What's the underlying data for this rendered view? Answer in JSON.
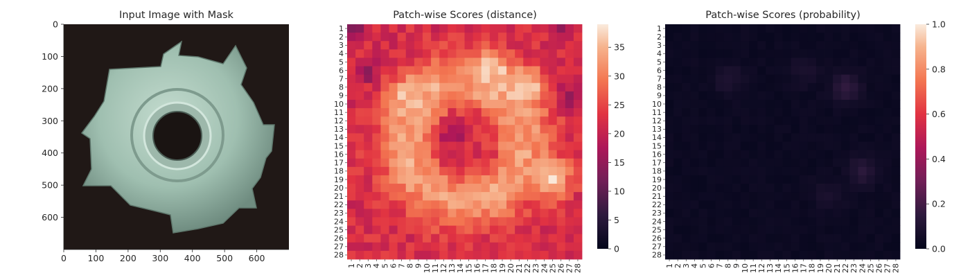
{
  "figure": {
    "panels": [
      {
        "title": "Input Image with Mask"
      },
      {
        "title": "Patch-wise Scores (distance)"
      },
      {
        "title": "Patch-wise Scores (probability)"
      }
    ]
  },
  "chart_data": [
    {
      "type": "image",
      "title": "Input Image with Mask",
      "xlabel": "",
      "ylabel": "",
      "xlim": [
        0,
        700
      ],
      "ylim": [
        700,
        0
      ],
      "x_ticks": [
        0,
        100,
        200,
        300,
        400,
        500,
        600
      ],
      "y_ticks": [
        0,
        100,
        200,
        300,
        400,
        500,
        600
      ],
      "image": {
        "subject": "metal T-nut with four prongs and a center hole",
        "background": "#201816",
        "metal_color": "#a9c6b8",
        "hole_color": "#1a1412"
      }
    },
    {
      "type": "heatmap",
      "title": "Patch-wise Scores (distance)",
      "xlabel": "",
      "ylabel": "",
      "rows": 28,
      "cols": 28,
      "x_ticks": [
        "1",
        "2",
        "3",
        "4",
        "5",
        "6",
        "7",
        "8",
        "9",
        "10",
        "11",
        "12",
        "13",
        "14",
        "15",
        "16",
        "17",
        "18",
        "19",
        "20",
        "21",
        "22",
        "23",
        "24",
        "25",
        "26",
        "27",
        "28"
      ],
      "y_ticks": [
        "1",
        "2",
        "3",
        "4",
        "5",
        "6",
        "7",
        "8",
        "9",
        "10",
        "11",
        "12",
        "13",
        "14",
        "15",
        "16",
        "17",
        "18",
        "19",
        "20",
        "21",
        "22",
        "23",
        "24",
        "25",
        "26",
        "27",
        "28"
      ],
      "colorbar": {
        "min": 0,
        "max": 39,
        "ticks": [
          0,
          5,
          10,
          15,
          20,
          25,
          30,
          35
        ]
      },
      "colormap": "rocket",
      "pattern": {
        "edge_value": 22,
        "ring_center": [
          14.5,
          14.5
        ],
        "ring_radius": 7,
        "ring_width": 3.5,
        "ring_peak": 33,
        "center_value": 21,
        "hotspots": [
          {
            "row": 6,
            "col": 18,
            "value": 37
          },
          {
            "row": 8,
            "col": 22,
            "value": 38
          },
          {
            "row": 19,
            "col": 25,
            "value": 38
          },
          {
            "row": 9,
            "col": 8,
            "value": 36
          }
        ],
        "lowspots": [
          {
            "row": 1,
            "col": 1,
            "value": 12
          },
          {
            "row": 6,
            "col": 3,
            "value": 13
          },
          {
            "row": 1,
            "col": 26,
            "value": 16
          },
          {
            "row": 9,
            "col": 27,
            "value": 15
          },
          {
            "row": 14,
            "col": 13,
            "value": 17
          }
        ]
      }
    },
    {
      "type": "heatmap",
      "title": "Patch-wise Scores (probability)",
      "xlabel": "",
      "ylabel": "",
      "rows": 28,
      "cols": 28,
      "x_ticks": [
        "1",
        "2",
        "3",
        "4",
        "5",
        "6",
        "7",
        "8",
        "9",
        "10",
        "11",
        "12",
        "13",
        "14",
        "15",
        "16",
        "17",
        "18",
        "19",
        "20",
        "21",
        "22",
        "23",
        "24",
        "25",
        "26",
        "27",
        "28"
      ],
      "y_ticks": [
        "1",
        "2",
        "3",
        "4",
        "5",
        "6",
        "7",
        "8",
        "9",
        "10",
        "11",
        "12",
        "13",
        "14",
        "15",
        "16",
        "17",
        "18",
        "19",
        "20",
        "21",
        "22",
        "23",
        "24",
        "25",
        "26",
        "27",
        "28"
      ],
      "colorbar": {
        "min": 0,
        "max": 1,
        "ticks": [
          "0.0",
          "0.2",
          "0.4",
          "0.6",
          "0.8",
          "1.0"
        ]
      },
      "colormap": "rocket",
      "pattern": {
        "base_value": 0.02,
        "bumps": [
          {
            "row": 8,
            "col": 22,
            "value": 0.12
          },
          {
            "row": 7,
            "col": 8,
            "value": 0.07
          },
          {
            "row": 18,
            "col": 24,
            "value": 0.1
          },
          {
            "row": 6,
            "col": 17,
            "value": 0.06
          },
          {
            "row": 21,
            "col": 20,
            "value": 0.05
          }
        ]
      }
    }
  ]
}
